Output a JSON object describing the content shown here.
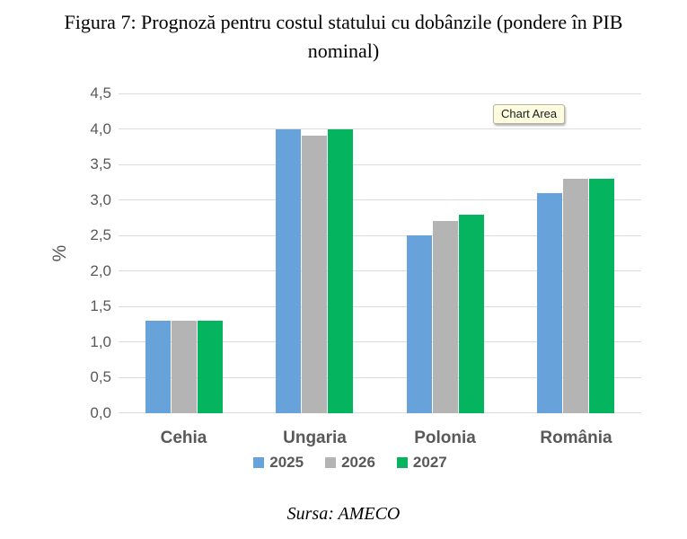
{
  "figure": {
    "title_line1": "Figura 7: Prognoză pentru costul statului cu dobânzile (pondere în PIB",
    "title_line2": "nominal)",
    "source": "Sursa: AMECO"
  },
  "tooltip": {
    "label": "Chart Area"
  },
  "chart_data": {
    "type": "bar",
    "title": "Figura 7: Prognoză pentru costul statului cu dobânzile (pondere în PIB nominal)",
    "categories": [
      "Cehia",
      "Ungaria",
      "Polonia",
      "România"
    ],
    "series": [
      {
        "name": "2025",
        "color": "#68a2db",
        "values": [
          1.3,
          4.0,
          2.5,
          3.1
        ]
      },
      {
        "name": "2026",
        "color": "#b4b4b4",
        "values": [
          1.3,
          3.9,
          2.7,
          3.3
        ]
      },
      {
        "name": "2027",
        "color": "#04b45f",
        "values": [
          1.3,
          4.0,
          2.8,
          3.3
        ]
      }
    ],
    "xlabel": "",
    "ylabel": "%",
    "ylim": [
      0,
      4.5
    ],
    "ytick_step": 0.5,
    "yticks": [
      "0,0",
      "0,5",
      "1,0",
      "1,5",
      "2,0",
      "2,5",
      "3,0",
      "3,5",
      "4,0",
      "4,5"
    ],
    "grid": true,
    "legend_position": "bottom",
    "gridline_color": "#dcdcdc",
    "text_color": "#595959"
  }
}
